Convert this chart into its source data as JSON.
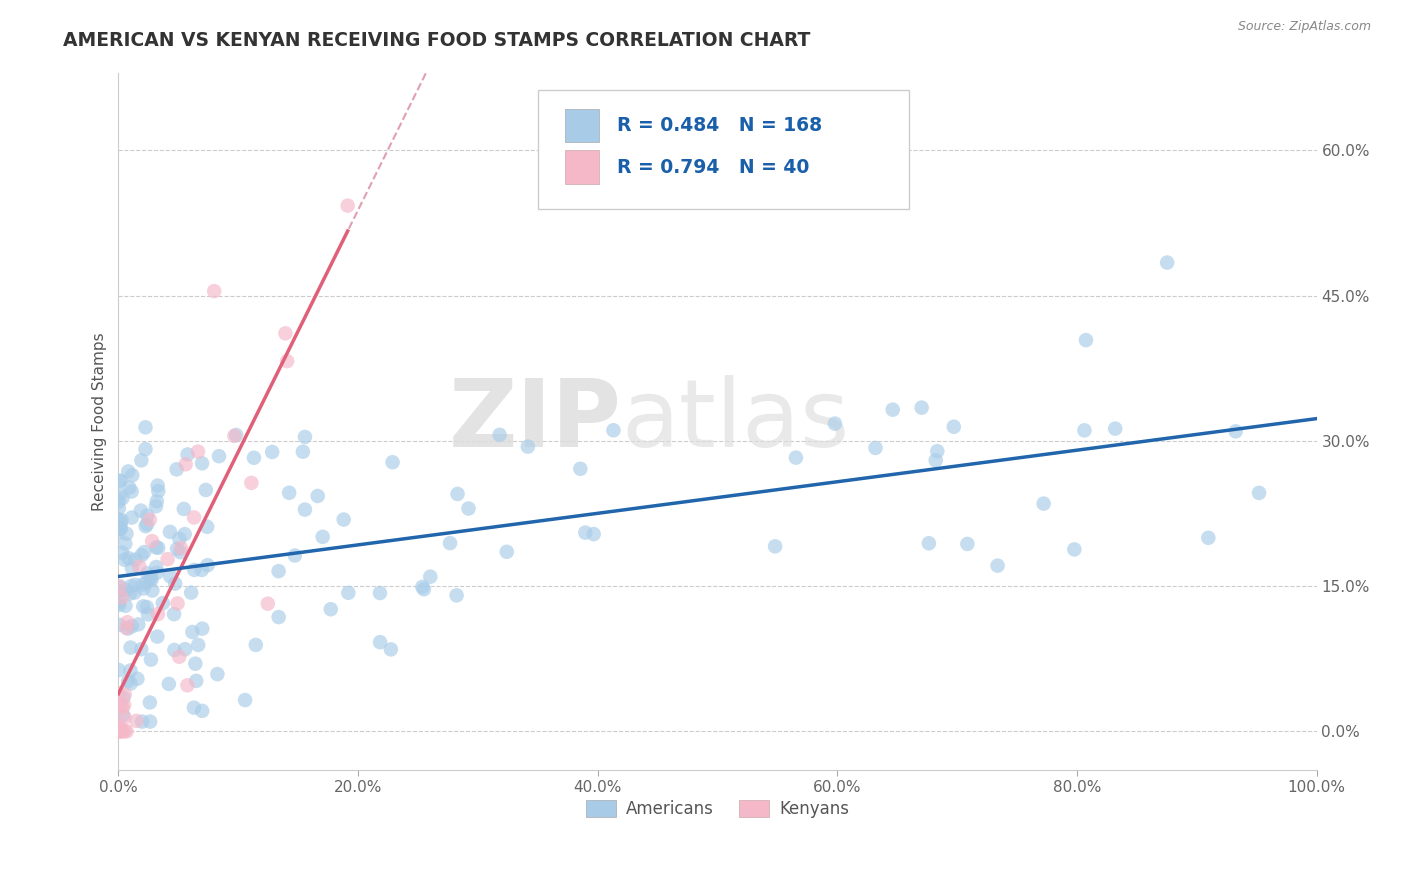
{
  "title": "AMERICAN VS KENYAN RECEIVING FOOD STAMPS CORRELATION CHART",
  "source_text": "Source: ZipAtlas.com",
  "ylabel": "Receiving Food Stamps",
  "xlim": [
    0.0,
    1.0
  ],
  "ylim": [
    -0.04,
    0.68
  ],
  "xtick_positions": [
    0.0,
    0.2,
    0.4,
    0.6,
    0.8,
    1.0
  ],
  "xtick_labels": [
    "0.0%",
    "20.0%",
    "40.0%",
    "60.0%",
    "80.0%",
    "100.0%"
  ],
  "ytick_positions": [
    0.0,
    0.15,
    0.3,
    0.45,
    0.6
  ],
  "ytick_labels": [
    "0.0%",
    "15.0%",
    "30.0%",
    "45.0%",
    "60.0%"
  ],
  "american_color": "#a8cce8",
  "kenyan_color": "#f4b8c8",
  "american_line_color": "#2166ac",
  "kenyan_line_color": "#e0607a",
  "kenyan_dash_color": "#e0a0b0",
  "watermark_zip": "ZIP",
  "watermark_atlas": "atlas",
  "watermark_color": "#d8d8d8",
  "background_color": "#ffffff",
  "title_color": "#333333",
  "title_fontsize": 13.5,
  "axis_label_color": "#555555",
  "legend_text_color": "#1a5faa",
  "grid_color": "#cccccc",
  "dot_size": 110,
  "dot_alpha": 0.65,
  "dot_linewidth": 1.5,
  "american_seed": 7,
  "kenyan_seed": 13
}
